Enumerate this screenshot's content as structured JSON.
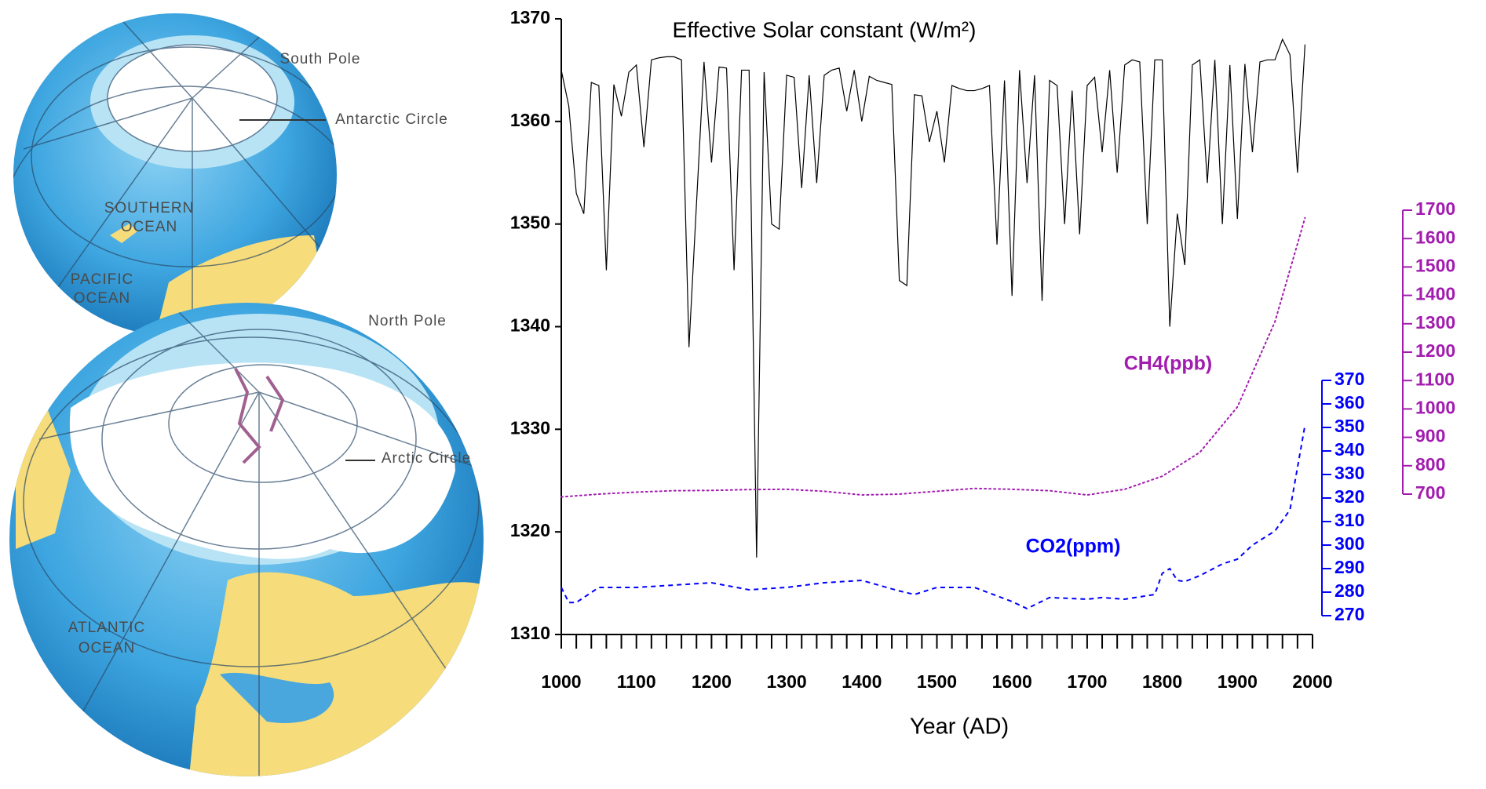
{
  "chart_data": {
    "type": "line",
    "title": "Effective Solar constant (W/m²)",
    "xlabel": "Year (AD)",
    "xlim": [
      1000,
      2000
    ],
    "xticks": [
      1000,
      1100,
      1200,
      1300,
      1400,
      1500,
      1600,
      1700,
      1800,
      1900,
      2000
    ],
    "x_minor_ticks": [
      1020,
      1040,
      1060,
      1080,
      1120,
      1140,
      1160,
      1180,
      1220,
      1240,
      1260,
      1280,
      1320,
      1340,
      1360,
      1380,
      1420,
      1440,
      1460,
      1480,
      1520,
      1540,
      1560,
      1580,
      1620,
      1640,
      1660,
      1680,
      1720,
      1740,
      1760,
      1780,
      1820,
      1840,
      1860,
      1880,
      1920,
      1940,
      1960,
      1980
    ],
    "ylim": [
      1310,
      1370
    ],
    "yticks": [
      1310,
      1320,
      1330,
      1340,
      1350,
      1360,
      1370
    ],
    "y2lim": [
      270,
      370
    ],
    "y2ticks": [
      270,
      280,
      290,
      300,
      310,
      320,
      330,
      340,
      350,
      360,
      370
    ],
    "y2color": "#0000ff",
    "y3lim": [
      700,
      1700
    ],
    "y3ticks": [
      700,
      800,
      900,
      1000,
      1100,
      1200,
      1300,
      1400,
      1500,
      1600,
      1700
    ],
    "y3color": "#a21caf",
    "series": [
      {
        "color": "#000000",
        "dash": "solid",
        "x": [
          1000,
          1010,
          1020,
          1030,
          1040,
          1050,
          1060,
          1070,
          1080,
          1090,
          1100,
          1110,
          1120,
          1130,
          1140,
          1150,
          1160,
          1170,
          1180,
          1190,
          1200,
          1210,
          1220,
          1230,
          1240,
          1250,
          1260,
          1270,
          1280,
          1290,
          1300,
          1310,
          1320,
          1330,
          1340,
          1350,
          1360,
          1370,
          1380,
          1390,
          1400,
          1410,
          1420,
          1430,
          1440,
          1450,
          1460,
          1470,
          1480,
          1490,
          1500,
          1510,
          1520,
          1530,
          1540,
          1550,
          1560,
          1570,
          1580,
          1590,
          1600,
          1610,
          1620,
          1630,
          1640,
          1650,
          1660,
          1670,
          1680,
          1690,
          1700,
          1710,
          1720,
          1730,
          1740,
          1750,
          1760,
          1770,
          1780,
          1790,
          1800,
          1810,
          1820,
          1830,
          1840,
          1850,
          1860,
          1870,
          1880,
          1890,
          1900,
          1910,
          1920,
          1930,
          1940,
          1950,
          1960,
          1970,
          1980,
          1990
        ],
        "values": [
          1365,
          1361.5,
          1353,
          1351,
          1363.8,
          1363.5,
          1345.5,
          1363.6,
          1360.5,
          1364.8,
          1365.5,
          1357.5,
          1366,
          1366.2,
          1366.3,
          1366.3,
          1366,
          1338,
          1352,
          1365.8,
          1356,
          1365.3,
          1365.2,
          1345.5,
          1365,
          1365,
          1317.5,
          1364.8,
          1350,
          1349.5,
          1364.5,
          1364.3,
          1353.5,
          1364.5,
          1354,
          1364.5,
          1365,
          1365.2,
          1361,
          1365,
          1360,
          1364.4,
          1364,
          1363.8,
          1363.6,
          1344.5,
          1344,
          1362.6,
          1362.5,
          1358,
          1361,
          1356,
          1363.5,
          1363.2,
          1363,
          1363,
          1363.2,
          1363.5,
          1348,
          1364,
          1343,
          1365,
          1354,
          1364.5,
          1342.5,
          1364,
          1363.5,
          1350,
          1363,
          1349,
          1363.5,
          1364.3,
          1357,
          1365,
          1355,
          1365.5,
          1366,
          1365.8,
          1350,
          1366,
          1366,
          1340,
          1351,
          1346,
          1365.5,
          1366,
          1354,
          1366,
          1350,
          1365.5,
          1350.5,
          1365.6,
          1357,
          1365.8,
          1366,
          1366,
          1368,
          1366.5,
          1355,
          1367.5
        ]
      },
      {
        "name": "CH4(ppb)",
        "color": "#a21caf",
        "dash": "dotted",
        "axis": "y3",
        "x": [
          1000,
          1050,
          1100,
          1150,
          1200,
          1250,
          1300,
          1350,
          1400,
          1450,
          1500,
          1550,
          1600,
          1650,
          1700,
          1750,
          1800,
          1850,
          1900,
          1950,
          1990
        ],
        "values": [
          690,
          700,
          707,
          712,
          713,
          716,
          717,
          710,
          697,
          700,
          710,
          720,
          717,
          712,
          697,
          717,
          763,
          847,
          1007,
          1307,
          1673
        ]
      },
      {
        "name": "CO2(ppm)",
        "color": "#0000ff",
        "dash": "dashed",
        "axis": "y2",
        "x": [
          1000,
          1010,
          1020,
          1050,
          1100,
          1200,
          1250,
          1300,
          1350,
          1400,
          1450,
          1470,
          1500,
          1550,
          1600,
          1620,
          1650,
          1700,
          1720,
          1750,
          1790,
          1800,
          1810,
          1820,
          1830,
          1850,
          1880,
          1900,
          1920,
          1950,
          1970,
          1990
        ],
        "values": [
          282,
          275.6,
          275.6,
          282,
          282,
          284,
          281,
          282,
          284,
          285,
          280.5,
          279,
          282,
          282,
          276,
          273,
          277.7,
          277,
          277.7,
          277,
          279,
          288,
          290,
          285,
          284.5,
          287,
          292,
          294,
          300,
          306,
          315,
          351
        ]
      }
    ]
  },
  "illustration": {
    "south_pole": "South Pole",
    "antarctic_circle": "Antarctic Circle",
    "southern_ocean": [
      "SOUTHERN",
      "OCEAN"
    ],
    "pacific_ocean": [
      "PACIFIC",
      "OCEAN"
    ],
    "north_pole": "North Pole",
    "arctic_circle": "Arctic Circle",
    "atlantic_ocean": [
      "ATLANTIC",
      "OCEAN"
    ]
  }
}
